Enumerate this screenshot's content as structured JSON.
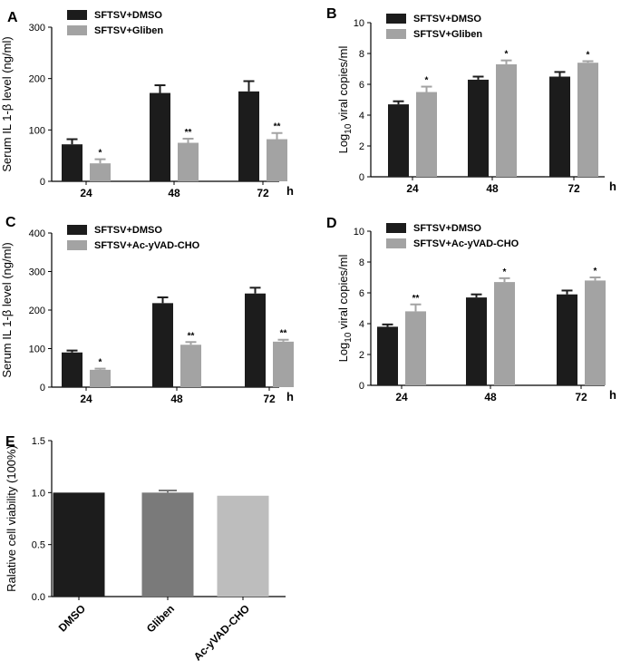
{
  "colors": {
    "dmso": "#1c1c1c",
    "treat": "#a3a3a3",
    "e_dmso": "#1c1c1c",
    "e_gliben": "#7a7a7a",
    "e_acyvad": "#bdbdbd"
  },
  "chart_data": [
    {
      "id": "A",
      "type": "bar",
      "panel_label": "A",
      "categories": [
        "24",
        "48",
        "72"
      ],
      "x_unit": "h",
      "ylabel": "Serum IL 1-β level (ng/ml)",
      "ylim": [
        0,
        300
      ],
      "yticks": [
        "0",
        "100",
        "200",
        "300"
      ],
      "series": [
        {
          "name": "SFTSV+DMSO",
          "color_key": "dmso",
          "values": [
            72,
            172,
            175
          ],
          "errors": [
            10,
            15,
            20
          ],
          "sig": [
            "",
            "",
            ""
          ]
        },
        {
          "name": "SFTSV+Gliben",
          "color_key": "treat",
          "values": [
            35,
            75,
            82
          ],
          "errors": [
            8,
            8,
            12
          ],
          "sig": [
            "*",
            "**",
            "**"
          ]
        }
      ]
    },
    {
      "id": "B",
      "type": "bar",
      "panel_label": "B",
      "categories": [
        "24",
        "48",
        "72"
      ],
      "x_unit": "h",
      "ylabel_pre": "Log",
      "ylabel_sub": "10",
      "ylabel_post": " viral copies/ml",
      "ylim": [
        0,
        10
      ],
      "yticks": [
        "0",
        "2",
        "4",
        "6",
        "8",
        "10"
      ],
      "series": [
        {
          "name": "SFTSV+DMSO",
          "color_key": "dmso",
          "values": [
            4.7,
            6.3,
            6.5
          ],
          "errors": [
            0.2,
            0.2,
            0.3
          ],
          "sig": [
            "",
            "",
            ""
          ]
        },
        {
          "name": "SFTSV+Gliben",
          "color_key": "treat",
          "values": [
            5.5,
            7.3,
            7.4
          ],
          "errors": [
            0.35,
            0.25,
            0.1
          ],
          "sig": [
            "*",
            "*",
            "*"
          ]
        }
      ]
    },
    {
      "id": "C",
      "type": "bar",
      "panel_label": "C",
      "categories": [
        "24",
        "48",
        "72"
      ],
      "x_unit": "h",
      "ylabel": "Serum IL 1-β level (ng/ml)",
      "ylim": [
        0,
        400
      ],
      "yticks": [
        "0",
        "100",
        "200",
        "300",
        "400"
      ],
      "series": [
        {
          "name": "SFTSV+DMSO",
          "color_key": "dmso",
          "values": [
            90,
            218,
            243
          ],
          "errors": [
            5,
            15,
            15
          ],
          "sig": [
            "",
            "",
            ""
          ]
        },
        {
          "name": "SFTSV+Ac-yVAD-CHO",
          "color_key": "treat",
          "values": [
            45,
            110,
            118
          ],
          "errors": [
            3,
            7,
            5
          ],
          "sig": [
            "*",
            "**",
            "**"
          ]
        }
      ]
    },
    {
      "id": "D",
      "type": "bar",
      "panel_label": "D",
      "categories": [
        "24",
        "48",
        "72"
      ],
      "x_unit": "h",
      "ylabel_pre": "Log",
      "ylabel_sub": "10",
      "ylabel_post": " viral copies/ml",
      "ylim": [
        0,
        10
      ],
      "yticks": [
        "0",
        "2",
        "4",
        "6",
        "8",
        "10"
      ],
      "series": [
        {
          "name": "SFTSV+DMSO",
          "color_key": "dmso",
          "values": [
            3.8,
            5.7,
            5.9
          ],
          "errors": [
            0.15,
            0.2,
            0.25
          ],
          "sig": [
            "",
            "",
            ""
          ]
        },
        {
          "name": "SFTSV+Ac-yVAD-CHO",
          "color_key": "treat",
          "values": [
            4.8,
            6.7,
            6.8
          ],
          "errors": [
            0.45,
            0.25,
            0.2
          ],
          "sig": [
            "**",
            "*",
            "*"
          ]
        }
      ]
    },
    {
      "id": "E",
      "type": "bar",
      "panel_label": "E",
      "categories": [
        "DMSO",
        "Gliben",
        "Ac-yVAD-CHO"
      ],
      "ylabel": "Ralative cell viability (100%)",
      "ylim": [
        0,
        1.5
      ],
      "yticks": [
        "0.0",
        "0.5",
        "1.0",
        "1.5"
      ],
      "values": [
        1.0,
        1.0,
        0.97
      ],
      "errors": [
        0,
        0.02,
        0
      ],
      "color_keys": [
        "e_dmso",
        "e_gliben",
        "e_acyvad"
      ]
    }
  ]
}
